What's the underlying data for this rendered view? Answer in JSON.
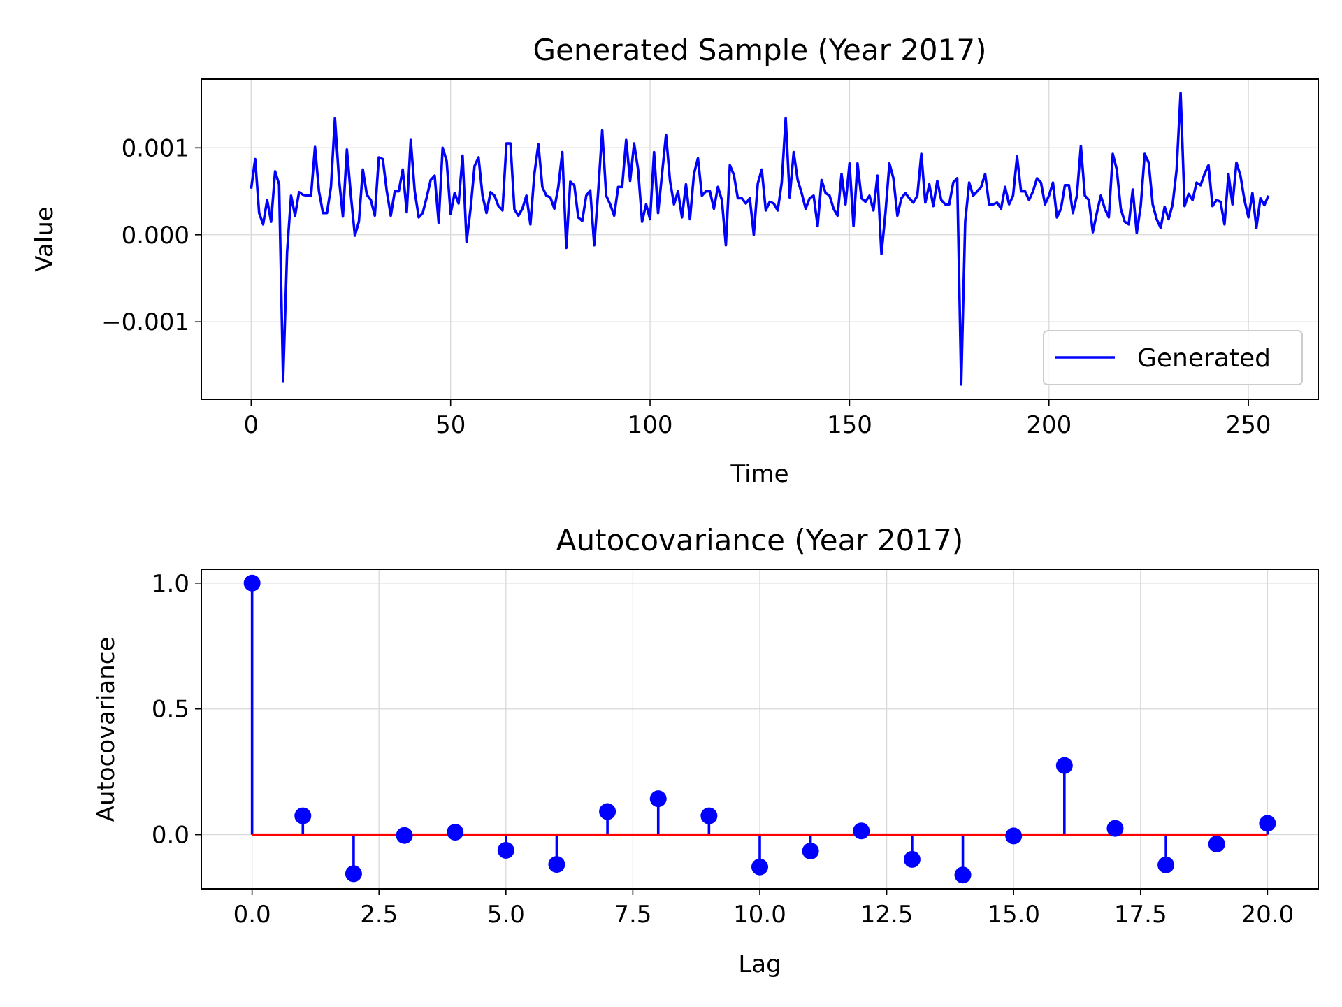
{
  "chart_data": [
    {
      "type": "line",
      "title": "Generated Sample (Year 2017)",
      "xlabel": "Time",
      "ylabel": "Value",
      "xlim": [
        -12.5,
        267.5
      ],
      "ylim": [
        -0.00189,
        0.00179
      ],
      "xticks": [
        0,
        50,
        100,
        150,
        200,
        250
      ],
      "xtick_labels": [
        "0",
        "50",
        "100",
        "150",
        "200",
        "250"
      ],
      "yticks": [
        -0.001,
        0.0,
        0.001
      ],
      "ytick_labels": [
        "−0.001",
        "0.000",
        "0.001"
      ],
      "grid": true,
      "legend": {
        "position": "lower right",
        "entries": [
          "Generated"
        ]
      },
      "series": [
        {
          "name": "Generated",
          "color": "#0000ff",
          "x_start": 0,
          "x_step": 1,
          "values": [
            0.00053,
            0.00087,
            0.00025,
            0.00012,
            0.0004,
            0.00015,
            0.00073,
            0.00058,
            -0.00168,
            -0.0002,
            0.00045,
            0.00022,
            0.00049,
            0.00046,
            0.00045,
            0.00045,
            0.00101,
            0.0005,
            0.00025,
            0.00025,
            0.00055,
            0.00134,
            0.00065,
            0.00021,
            0.00098,
            0.00045,
            -1e-05,
            0.00015,
            0.00075,
            0.00046,
            0.0004,
            0.00022,
            0.00089,
            0.00087,
            0.0005,
            0.00022,
            0.0005,
            0.0005,
            0.00075,
            0.00026,
            0.00109,
            0.0005,
            0.0002,
            0.00025,
            0.00043,
            0.00063,
            0.00068,
            0.00014,
            0.001,
            0.00085,
            0.00024,
            0.00048,
            0.00036,
            0.00091,
            -8e-05,
            0.0003,
            0.00079,
            0.00089,
            0.00045,
            0.00025,
            0.00049,
            0.00045,
            0.00033,
            0.00028,
            0.00105,
            0.00105,
            0.00029,
            0.00022,
            0.0003,
            0.00045,
            0.00012,
            0.0007,
            0.00104,
            0.00055,
            0.00045,
            0.00043,
            0.0003,
            0.00055,
            0.00095,
            -0.00015,
            0.00061,
            0.00057,
            0.0002,
            0.00016,
            0.00045,
            0.00051,
            -0.00012,
            0.0005,
            0.0012,
            0.00045,
            0.00035,
            0.00022,
            0.00055,
            0.00055,
            0.00109,
            0.00062,
            0.00105,
            0.00075,
            0.00015,
            0.00035,
            0.00018,
            0.00095,
            0.00025,
            0.0007,
            0.00115,
            0.00062,
            0.00035,
            0.0005,
            0.0002,
            0.00058,
            0.00018,
            0.0007,
            0.00088,
            0.00045,
            0.0005,
            0.0005,
            0.0003,
            0.00055,
            0.0004,
            -0.00012,
            0.0008,
            0.00069,
            0.00042,
            0.00042,
            0.00036,
            0.00042,
            0.0,
            0.00059,
            0.00075,
            0.00028,
            0.00038,
            0.00036,
            0.00028,
            0.0006,
            0.00134,
            0.00043,
            0.00095,
            0.00063,
            0.00048,
            0.0003,
            0.00042,
            0.00045,
            0.0001,
            0.00063,
            0.00048,
            0.00045,
            0.0003,
            0.00022,
            0.0007,
            0.00035,
            0.00082,
            0.0001,
            0.00082,
            0.00042,
            0.00038,
            0.00045,
            0.00028,
            0.00068,
            -0.00022,
            0.00025,
            0.00082,
            0.00065,
            0.00022,
            0.00042,
            0.00048,
            0.00042,
            0.00037,
            0.00045,
            0.00093,
            0.00037,
            0.00058,
            0.00033,
            0.00062,
            0.0004,
            0.00035,
            0.00035,
            0.0006,
            0.00065,
            -0.00172,
            0.00015,
            0.0006,
            0.00045,
            0.0005,
            0.00055,
            0.0007,
            0.00035,
            0.00035,
            0.00037,
            0.0003,
            0.00055,
            0.00035,
            0.00045,
            0.0009,
            0.0005,
            0.0005,
            0.0004,
            0.0005,
            0.00065,
            0.0006,
            0.00035,
            0.00045,
            0.0006,
            0.0002,
            0.0003,
            0.00057,
            0.00057,
            0.00025,
            0.00045,
            0.00102,
            0.00045,
            0.0004,
            3e-05,
            0.00025,
            0.00045,
            0.0003,
            0.0002,
            0.00093,
            0.00075,
            0.0003,
            0.00015,
            0.00012,
            0.00052,
            2e-05,
            0.00033,
            0.00093,
            0.00083,
            0.00035,
            0.00018,
            8e-05,
            0.00032,
            0.00018,
            0.00035,
            0.00075,
            0.00163,
            0.00033,
            0.00047,
            0.0004,
            0.0006,
            0.00057,
            0.0007,
            0.0008,
            0.00033,
            0.0004,
            0.00038,
            0.00012,
            0.0007,
            0.00035,
            0.00083,
            0.00068,
            0.0004,
            0.0002,
            0.00048,
            8e-05,
            0.00042,
            0.00034,
            0.00045
          ]
        }
      ]
    },
    {
      "type": "stem",
      "title": "Autocovariance (Year 2017)",
      "xlabel": "Lag",
      "ylabel": "Autocovariance",
      "xlim": [
        -1.0,
        21.0
      ],
      "ylim": [
        -0.215,
        1.055
      ],
      "xticks": [
        0.0,
        2.5,
        5.0,
        7.5,
        10.0,
        12.5,
        15.0,
        17.5,
        20.0
      ],
      "xtick_labels": [
        "0.0",
        "2.5",
        "5.0",
        "7.5",
        "10.0",
        "12.5",
        "15.0",
        "17.5",
        "20.0"
      ],
      "yticks": [
        0.0,
        0.5,
        1.0
      ],
      "ytick_labels": [
        "0.0",
        "0.5",
        "1.0"
      ],
      "grid": true,
      "baseline_color": "#ff0000",
      "stem_color": "#0000ff",
      "series": [
        {
          "x": [
            0,
            1,
            2,
            3,
            4,
            5,
            6,
            7,
            8,
            9,
            10,
            11,
            12,
            13,
            14,
            15,
            16,
            17,
            18,
            19,
            20
          ],
          "values": [
            1.0,
            0.075,
            -0.155,
            -0.003,
            0.01,
            -0.062,
            -0.118,
            0.092,
            0.143,
            0.075,
            -0.128,
            -0.065,
            0.015,
            -0.098,
            -0.16,
            -0.005,
            0.275,
            0.025,
            -0.12,
            -0.037,
            0.045
          ]
        }
      ]
    }
  ]
}
